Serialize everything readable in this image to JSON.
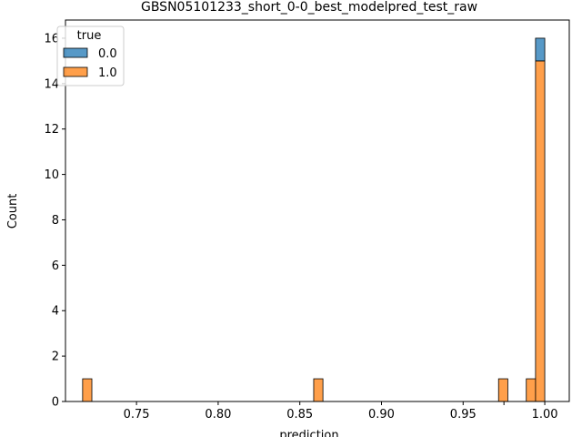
{
  "chart_data": {
    "type": "bar",
    "title": "GBSN05101233_short_0-0_best_modelpred_test_raw",
    "xlabel": "prediction",
    "ylabel": "Count",
    "xlim": [
      0.7065,
      1.015
    ],
    "ylim": [
      0,
      16.8
    ],
    "xticks": [
      {
        "value": 0.75,
        "label": "0.75"
      },
      {
        "value": 0.8,
        "label": "0.80"
      },
      {
        "value": 0.85,
        "label": "0.85"
      },
      {
        "value": 0.9,
        "label": "0.90"
      },
      {
        "value": 0.95,
        "label": "0.95"
      },
      {
        "value": 0.975,
        "label": ""
      },
      {
        "value": 1.0,
        "label": "1.00"
      }
    ],
    "yticks": [
      {
        "value": 0,
        "label": "0"
      },
      {
        "value": 2,
        "label": "2"
      },
      {
        "value": 4,
        "label": "4"
      },
      {
        "value": 6,
        "label": "6"
      },
      {
        "value": 8,
        "label": "8"
      },
      {
        "value": 10,
        "label": "10"
      },
      {
        "value": 12,
        "label": "12"
      },
      {
        "value": 14,
        "label": "14"
      },
      {
        "value": 16,
        "label": "16"
      }
    ],
    "bin_width": 0.00566,
    "stacked": true,
    "grid": false,
    "legend": {
      "title": "true",
      "placement": "top-left"
    },
    "series": [
      {
        "name": "0.0",
        "color": "#1f77b4",
        "bins": [
          {
            "start": 0.99434,
            "count": 1
          }
        ]
      },
      {
        "name": "1.0",
        "color": "#ff7f0e",
        "bins": [
          {
            "start": 0.717,
            "count": 1
          },
          {
            "start": 0.8585,
            "count": 1
          },
          {
            "start": 0.9717,
            "count": 1
          },
          {
            "start": 0.98868,
            "count": 1
          },
          {
            "start": 0.99434,
            "count": 15
          }
        ]
      }
    ]
  }
}
